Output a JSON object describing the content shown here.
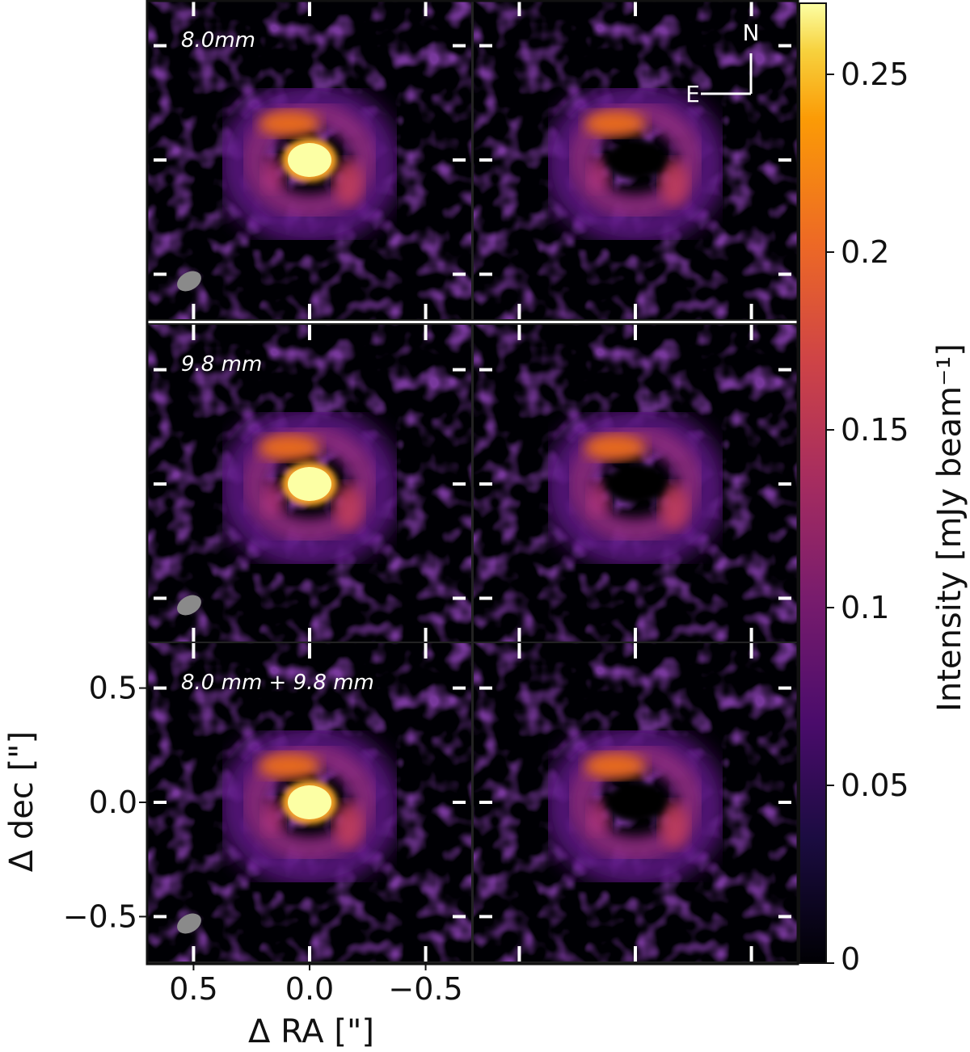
{
  "chart_data": {
    "type": "heatmap",
    "layout": "3x2 image grid",
    "panels": [
      {
        "row": 0,
        "col": 0,
        "label": "8.0mm",
        "image": "full",
        "beam": true
      },
      {
        "row": 0,
        "col": 1,
        "label": "",
        "image": "residual",
        "beam": false,
        "compass": true
      },
      {
        "row": 1,
        "col": 0,
        "label": "9.8 mm",
        "image": "full",
        "beam": true
      },
      {
        "row": 1,
        "col": 1,
        "label": "",
        "image": "residual",
        "beam": false
      },
      {
        "row": 2,
        "col": 0,
        "label": "8.0 mm + 9.8 mm",
        "image": "full",
        "beam": true
      },
      {
        "row": 2,
        "col": 1,
        "label": "",
        "image": "residual",
        "beam": false
      }
    ],
    "x_axis": {
      "label": "Δ RA [\"]",
      "ticks": [
        0.5,
        0.0,
        -0.5
      ],
      "tick_labels": [
        "0.5",
        "0.0",
        "−0.5"
      ],
      "range": [
        0.7,
        -0.7
      ]
    },
    "y_axis": {
      "label": "Δ dec [\"]",
      "ticks": [
        0.5,
        0.0,
        -0.5
      ],
      "tick_labels": [
        "0.5",
        "0.0",
        "−0.5"
      ],
      "range": [
        -0.7,
        0.7
      ]
    },
    "colorbar": {
      "label": "Intensity [mJy beam⁻¹]",
      "range": [
        0,
        0.27
      ],
      "ticks": [
        0,
        0.05,
        0.1,
        0.15,
        0.2,
        0.25
      ],
      "tick_labels": [
        "0",
        "0.05",
        "0.1",
        "0.15",
        "0.2",
        "0.25"
      ],
      "colormap": "inferno"
    },
    "compass": {
      "north": "N",
      "east": "E"
    },
    "colors": {
      "background": "#000004",
      "low": "#3b0f6f",
      "mid": "#b5367a",
      "high": "#f9a425",
      "peak": "#fcffa4",
      "beam": "#8a8a8a"
    }
  }
}
